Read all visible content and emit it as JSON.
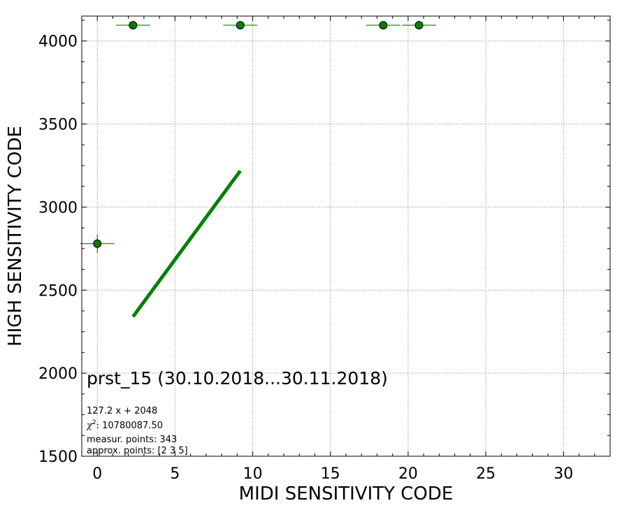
{
  "chart_data": {
    "type": "scatter",
    "xlabel": "MIDI SENSITIVITY CODE",
    "ylabel": "HIGH SENSITIVITY CODE",
    "xlim": [
      -1,
      33
    ],
    "ylim": [
      1500,
      4150
    ],
    "xticks": [
      0,
      5,
      10,
      15,
      20,
      25,
      30
    ],
    "yticks": [
      1500,
      2000,
      2500,
      3000,
      3500,
      4000
    ],
    "grid": true,
    "points": [
      {
        "x": 0.0,
        "y": 2780,
        "xerr": 1.1,
        "yerr": 55
      },
      {
        "x": 2.3,
        "y": 4095,
        "xerr": 1.1,
        "yerr": 0
      },
      {
        "x": 9.2,
        "y": 4095,
        "xerr": 1.1,
        "yerr": 0
      },
      {
        "x": 18.4,
        "y": 4095,
        "xerr": 1.1,
        "yerr": 0
      },
      {
        "x": 20.7,
        "y": 4095,
        "xerr": 1.1,
        "yerr": 0
      }
    ],
    "fit_line": {
      "x": [
        2.3,
        9.2
      ],
      "slope": 127.2,
      "intercept": 2048
    },
    "marker_color": "#008000",
    "line_color": "#008000",
    "annotations": {
      "title": "prst_15 (30.10.2018...30.11.2018)",
      "formula": "127.2 x + 2048",
      "chi2": "10780087.50",
      "measur_points": "measur. points: 343",
      "approx_points": "approx. points: [2 3 5]"
    }
  }
}
